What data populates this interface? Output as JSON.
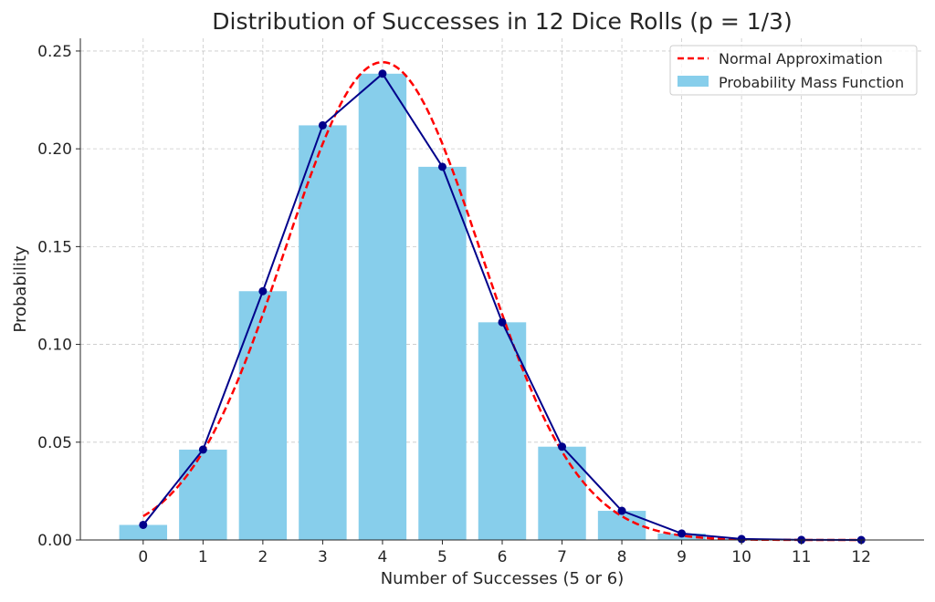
{
  "chart_data": {
    "type": "bar",
    "title": "Distribution of Successes in 12 Dice Rolls (p = 1/3)",
    "xlabel": "Number of Successes (5 or 6)",
    "ylabel": "Probability",
    "x": [
      0,
      1,
      2,
      3,
      4,
      5,
      6,
      7,
      8,
      9,
      10,
      11,
      12
    ],
    "x_tick_labels": [
      "0",
      "1",
      "2",
      "3",
      "4",
      "5",
      "6",
      "7",
      "8",
      "9",
      "10",
      "11",
      "12"
    ],
    "y_tick_values": [
      0,
      0.05,
      0.1,
      0.15,
      0.2,
      0.25
    ],
    "y_tick_labels": [
      "0.00",
      "0.05",
      "0.10",
      "0.15",
      "0.20",
      "0.25"
    ],
    "xlim": [
      -1.05,
      13.05
    ],
    "ylim": [
      0,
      0.2565
    ],
    "grid": true,
    "legend_position": "top-right",
    "series": [
      {
        "name": "Probability Mass Function",
        "kind": "bar+line",
        "bar_color": "#87ceeb",
        "line_color": "#00008b",
        "values": [
          0.0077,
          0.0462,
          0.1272,
          0.212,
          0.2384,
          0.1908,
          0.1113,
          0.0477,
          0.0149,
          0.0033,
          0.0005,
          5e-05,
          2e-06
        ]
      },
      {
        "name": "Normal Approximation",
        "kind": "dashed-line",
        "color": "#ff0000",
        "mean": 4,
        "sd": 1.633
      }
    ],
    "legend": [
      "Normal Approximation",
      "Probability Mass Function"
    ]
  }
}
